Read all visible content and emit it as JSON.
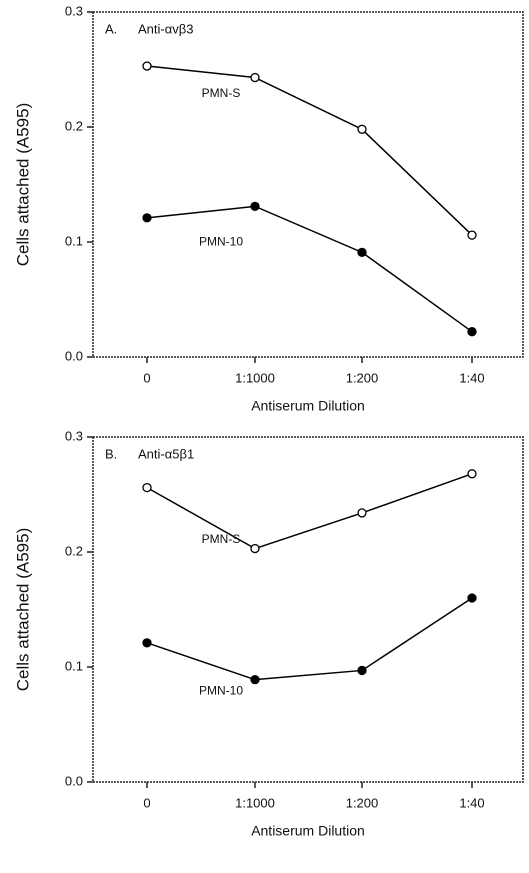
{
  "chart_data": [
    {
      "type": "line",
      "panel": "A.",
      "title": "Anti-αvβ3",
      "xlabel": "Antiserum Dilution",
      "ylabel": "Cells attached (A595)",
      "categories": [
        "0",
        "1:1000",
        "1:200",
        "1:40"
      ],
      "series": [
        {
          "name": "PMN-S",
          "color": "#000000",
          "marker": "open",
          "values": [
            0.253,
            0.243,
            0.198,
            0.106
          ]
        },
        {
          "name": "PMN-10",
          "color": "#000000",
          "marker": "filled",
          "values": [
            0.121,
            0.131,
            0.091,
            0.022
          ]
        }
      ],
      "ylim": [
        0,
        0.3
      ],
      "yticks": [
        {
          "value": 0,
          "label": "0.0"
        },
        0.1,
        0.2,
        0.3
      ]
    },
    {
      "type": "line",
      "panel": "B.",
      "title": "Anti-α5β1",
      "xlabel": "Antiserum Dilution",
      "ylabel": "Cells attached (A595)",
      "categories": [
        "0",
        "1:1000",
        "1:200",
        "1:40"
      ],
      "series": [
        {
          "name": "PMN-S",
          "color": "#000000",
          "marker": "open",
          "values": [
            0.256,
            0.203,
            0.234,
            0.268
          ]
        },
        {
          "name": "PMN-10",
          "color": "#000000",
          "marker": "filled",
          "values": [
            0.121,
            0.089,
            0.097,
            0.16
          ]
        }
      ],
      "ylim": [
        0,
        0.3
      ],
      "yticks": [
        {
          "value": 0,
          "label": "0.0"
        },
        0.1,
        0.2,
        0.3
      ]
    }
  ]
}
